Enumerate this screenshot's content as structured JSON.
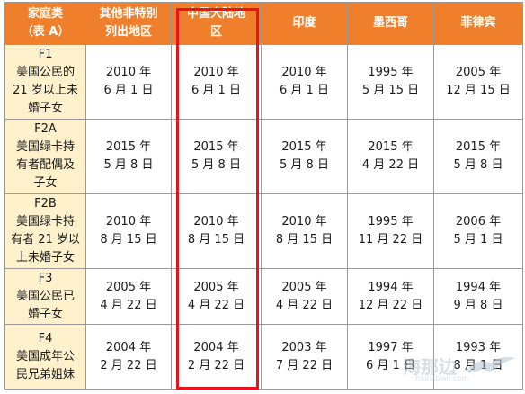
{
  "header": {
    "category_line1": "家庭类",
    "category_line2": "（表 A）",
    "columns": [
      {
        "line1": "其他非特别",
        "line2": "列出地区"
      },
      {
        "line1": "中国大陆地",
        "line2": "区"
      },
      {
        "line1": "印度",
        "line2": ""
      },
      {
        "line1": "墨西哥",
        "line2": ""
      },
      {
        "line1": "菲律宾",
        "line2": ""
      }
    ]
  },
  "rows": [
    {
      "category": [
        "F1",
        "美国公民的",
        "21 岁以上未",
        "婚子女"
      ],
      "cells": [
        [
          "2010 年",
          "6 月 1 日"
        ],
        [
          "2010 年",
          "6 月 1 日"
        ],
        [
          "2010 年",
          "6 月 1 日"
        ],
        [
          "1995 年",
          "5 月 15 日"
        ],
        [
          "2005 年",
          "12 月 15 日"
        ]
      ]
    },
    {
      "category": [
        "F2A",
        "美国绿卡持",
        "有者配偶及",
        "子女"
      ],
      "cells": [
        [
          "2015 年",
          "5 月 8 日"
        ],
        [
          "2015 年",
          "5 月 8 日"
        ],
        [
          "2015 年",
          "5 月 8 日"
        ],
        [
          "2015 年",
          "4 月 22 日"
        ],
        [
          "2015 年",
          "5 月 8 日"
        ]
      ]
    },
    {
      "category": [
        "F2B",
        "美国绿卡持",
        "有者 21 岁以",
        "上未婚子女"
      ],
      "cells": [
        [
          "2010 年",
          "8 月 15 日"
        ],
        [
          "2010 年",
          "8 月 15 日"
        ],
        [
          "2010 年",
          "8 月 15 日"
        ],
        [
          "1995 年",
          "11 月 22 日"
        ],
        [
          "2006 年",
          "5 月 1 日"
        ]
      ]
    },
    {
      "category": [
        "F3",
        "美国公民已",
        "婚子女",
        ""
      ],
      "cells": [
        [
          "2005 年",
          "4 月 22 日"
        ],
        [
          "2005 年",
          "4 月 22 日"
        ],
        [
          "2005 年",
          "4 月 22 日"
        ],
        [
          "1994 年",
          "12 月 22 日"
        ],
        [
          "1994 年",
          "9 月 8 日"
        ]
      ]
    },
    {
      "category": [
        "F4",
        "美国成年公",
        "民兄弟姐妹",
        ""
      ],
      "cells": [
        [
          "2004 年",
          "2 月 22 日"
        ],
        [
          "2004 年",
          "2 月 22 日"
        ],
        [
          "2003 年",
          "7 月 22 日"
        ],
        [
          "1997 年",
          "6 月 1 日"
        ],
        [
          "1993 年",
          "8 月 1 日"
        ]
      ]
    }
  ],
  "watermark": {
    "text": "海那边",
    "url": "hainabian.com"
  },
  "colors": {
    "header_bg": "#f07f2c",
    "category_bg": "#fff1cc",
    "highlight": "#e8141b"
  }
}
